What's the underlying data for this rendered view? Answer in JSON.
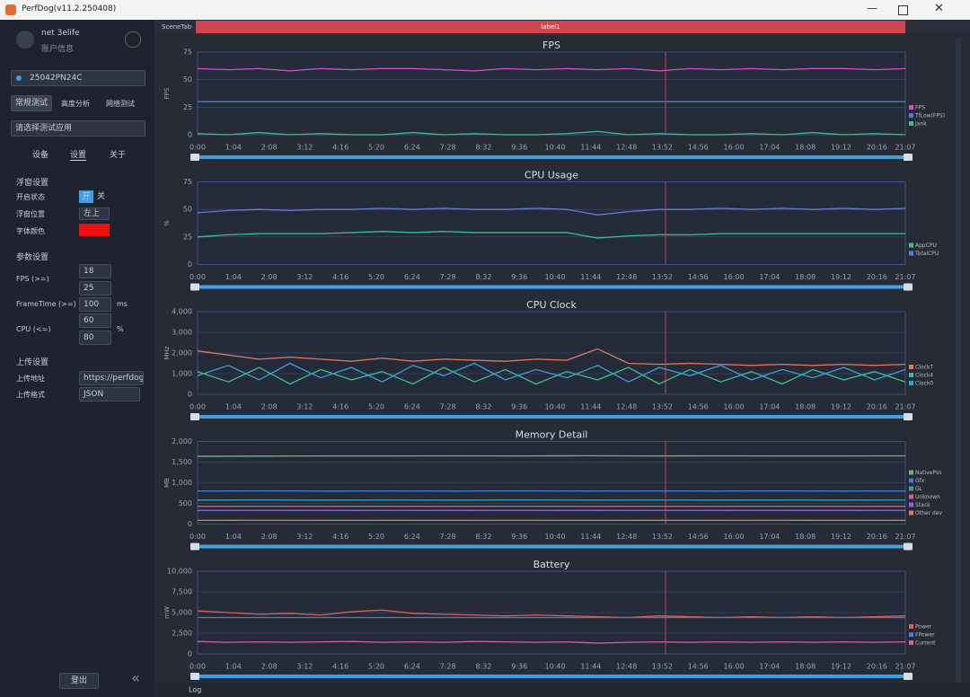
{
  "window": {
    "title": "PerfDog(v11.2.250408)"
  },
  "sidebar": {
    "user": {
      "name": "net 3elife",
      "account": "账户信息"
    },
    "device": "25042PN24C",
    "mode_tabs": [
      "常规测试",
      "高度分析",
      "网络测试"
    ],
    "app_select": "请选择测试应用",
    "sub_tabs": [
      "设备",
      "设置",
      "关于"
    ],
    "float_settings": {
      "heading": "浮窗设置",
      "status_label": "开启状态",
      "on": "开",
      "off": "关",
      "position_label": "浮窗位置",
      "position": "左上",
      "font_color_label": "字体颜色"
    },
    "params": {
      "heading": "参数设置",
      "fps_label": "FPS (>=)",
      "fps": [
        18,
        25
      ],
      "frametime_label": "FrameTime (>=)",
      "frametime": 100,
      "frametime_unit": "ms",
      "cpu_label": "CPU (<=)",
      "cpu": [
        60,
        80
      ],
      "cpu_unit": "%"
    },
    "upload": {
      "heading": "上传设置",
      "url_label": "上传地址",
      "url": "https://perfdog.q",
      "format_label": "上传格式",
      "format": "JSON"
    },
    "logout": "登出"
  },
  "tabs": {
    "scene": "SceneTab",
    "label": "label1"
  },
  "timeline": {
    "ticks": [
      "0:00",
      "1:04",
      "2:08",
      "3:12",
      "4:16",
      "5:20",
      "6:24",
      "7:28",
      "8:32",
      "9:36",
      "10:40",
      "11:44",
      "12:48",
      "13:52",
      "14:56",
      "16:00",
      "17:04",
      "18:08",
      "19:12",
      "20:16",
      "21:07"
    ]
  },
  "charts": [
    {
      "type": "line",
      "title": "FPS",
      "ylabel": "FPS",
      "ylim": [
        0,
        75
      ],
      "yticks": [
        0,
        25,
        50,
        75
      ],
      "series": [
        {
          "name": "FPS",
          "color": "#d24fce",
          "values": [
            60,
            59,
            60,
            58,
            60,
            59,
            60,
            60,
            59,
            58,
            60,
            59,
            60,
            59,
            60,
            58,
            60,
            59,
            60,
            59,
            60,
            60,
            59,
            60
          ]
        },
        {
          "name": "TfLow(FPS)",
          "color": "#4a7ad8",
          "values": [
            30,
            30,
            30,
            30,
            30,
            30,
            30,
            30,
            30,
            30,
            30,
            30
          ]
        },
        {
          "name": "Jank",
          "color": "#3cc08a",
          "values": [
            1,
            0,
            2,
            0,
            1,
            0,
            0,
            2,
            0,
            1,
            0,
            0,
            1,
            3,
            0,
            1,
            0,
            0,
            1,
            0,
            2,
            0,
            1,
            0
          ]
        }
      ]
    },
    {
      "type": "line",
      "title": "CPU Usage",
      "ylabel": "%",
      "ylim": [
        0,
        75
      ],
      "yticks": [
        0,
        25,
        50,
        75
      ],
      "series": [
        {
          "name": "AppCPU",
          "color": "#3cc08a",
          "values": [
            25,
            27,
            28,
            28,
            28,
            29,
            30,
            29,
            30,
            29,
            29,
            29,
            29,
            24,
            26,
            27,
            27,
            28,
            28,
            28,
            28,
            28,
            28,
            28
          ]
        },
        {
          "name": "TotalCPU",
          "color": "#5a7ee0",
          "values": [
            47,
            49,
            50,
            49,
            50,
            50,
            51,
            50,
            51,
            50,
            50,
            51,
            50,
            45,
            48,
            50,
            50,
            51,
            50,
            51,
            50,
            51,
            50,
            51
          ]
        }
      ]
    },
    {
      "type": "line",
      "title": "CPU Clock",
      "ylabel": "MHz",
      "ylim": [
        0,
        4000
      ],
      "yticks": [
        0,
        {
          "value": 1000,
          "label": "1,000"
        },
        {
          "value": 2000,
          "label": "2,000"
        },
        {
          "value": 3000,
          "label": "3,000"
        },
        {
          "value": 4000,
          "label": "4,000"
        }
      ],
      "series": [
        {
          "name": "Clock7",
          "color": "#e0785a",
          "values": [
            2100,
            1900,
            1700,
            1800,
            1700,
            1600,
            1750,
            1600,
            1700,
            1650,
            1600,
            1700,
            1650,
            2200,
            1500,
            1450,
            1500,
            1450,
            1400,
            1450,
            1400,
            1450,
            1400,
            1450
          ]
        },
        {
          "name": "Clock4",
          "color": "#3cc08a",
          "values": [
            1100,
            600,
            1300,
            500,
            1200,
            700,
            1100,
            500,
            1300,
            600,
            1200,
            500,
            1100,
            700,
            1300,
            500,
            1200,
            600,
            1100,
            500,
            1200,
            700,
            1100,
            600
          ]
        },
        {
          "name": "Clock0",
          "color": "#3aa0d8",
          "values": [
            900,
            1400,
            700,
            1500,
            800,
            1300,
            600,
            1400,
            900,
            1500,
            700,
            1200,
            800,
            1400,
            600,
            1300,
            900,
            1400,
            700,
            1200,
            800,
            1300,
            700,
            1200
          ]
        }
      ]
    },
    {
      "type": "line",
      "title": "Memory Detail",
      "ylabel": "MB",
      "ylim": [
        0,
        2000
      ],
      "yticks": [
        0,
        500,
        {
          "value": 1000,
          "label": "1,000"
        },
        {
          "value": 1500,
          "label": "1,500"
        },
        {
          "value": 2000,
          "label": "2,000"
        }
      ],
      "series": [
        {
          "name": "NativePss",
          "color": "#6fb86a",
          "values": [
            1640,
            1645,
            1650,
            1650,
            1652,
            1650,
            1655,
            1650,
            1652,
            1650,
            1650,
            1652
          ]
        },
        {
          "name": "Gfx",
          "color": "#4a7ad8",
          "values": [
            800,
            805,
            800,
            802,
            800,
            804,
            800,
            802,
            800,
            803,
            800,
            802
          ]
        },
        {
          "name": "GL",
          "color": "#3aa0b0",
          "values": [
            580,
            585,
            580,
            582,
            580,
            584,
            580,
            582,
            580,
            583,
            580,
            582
          ]
        },
        {
          "name": "Unknown",
          "color": "#d06090",
          "values": [
            430,
            432,
            430,
            431,
            430,
            432,
            430,
            431,
            430,
            432,
            430,
            431
          ]
        },
        {
          "name": "Stack",
          "color": "#8a6ad0",
          "values": [
            330,
            331,
            330,
            332,
            330,
            331,
            330,
            332,
            330,
            331,
            330,
            332
          ]
        },
        {
          "name": "Other dev",
          "color": "#e0785a",
          "values": [
            90,
            92,
            90,
            91,
            90,
            92,
            90,
            91,
            90,
            92,
            90,
            91
          ]
        }
      ]
    },
    {
      "type": "line",
      "title": "Battery",
      "ylabel": "mW",
      "ylim": [
        0,
        10000
      ],
      "yticks": [
        0,
        {
          "value": 2500,
          "label": "2,500"
        },
        {
          "value": 5000,
          "label": "5,000"
        },
        {
          "value": 7500,
          "label": "7,500"
        },
        {
          "value": 10000,
          "label": "10,000"
        }
      ],
      "series": [
        {
          "name": "Power",
          "color": "#e06050",
          "values": [
            5200,
            5000,
            4800,
            4900,
            4700,
            5100,
            5300,
            4900,
            4800,
            4700,
            4600,
            4700,
            4600,
            4500,
            4400,
            4600,
            4500,
            4400,
            4500,
            4400,
            4500,
            4400,
            4500,
            4600
          ]
        },
        {
          "name": "FPower",
          "color": "#4a7ad8",
          "values": [
            4400,
            4400,
            4400,
            4400,
            4400,
            4400,
            4400,
            4400,
            4400,
            4400,
            4400,
            4400
          ]
        },
        {
          "name": "Current",
          "color": "#d060a0",
          "values": [
            1500,
            1400,
            1450,
            1400,
            1450,
            1500,
            1400,
            1450,
            1400,
            1500,
            1450,
            1400,
            1450,
            1300,
            1400,
            1450,
            1400,
            1450,
            1400,
            1450,
            1400,
            1450,
            1400,
            1450
          ]
        }
      ]
    }
  ],
  "log": "Log"
}
